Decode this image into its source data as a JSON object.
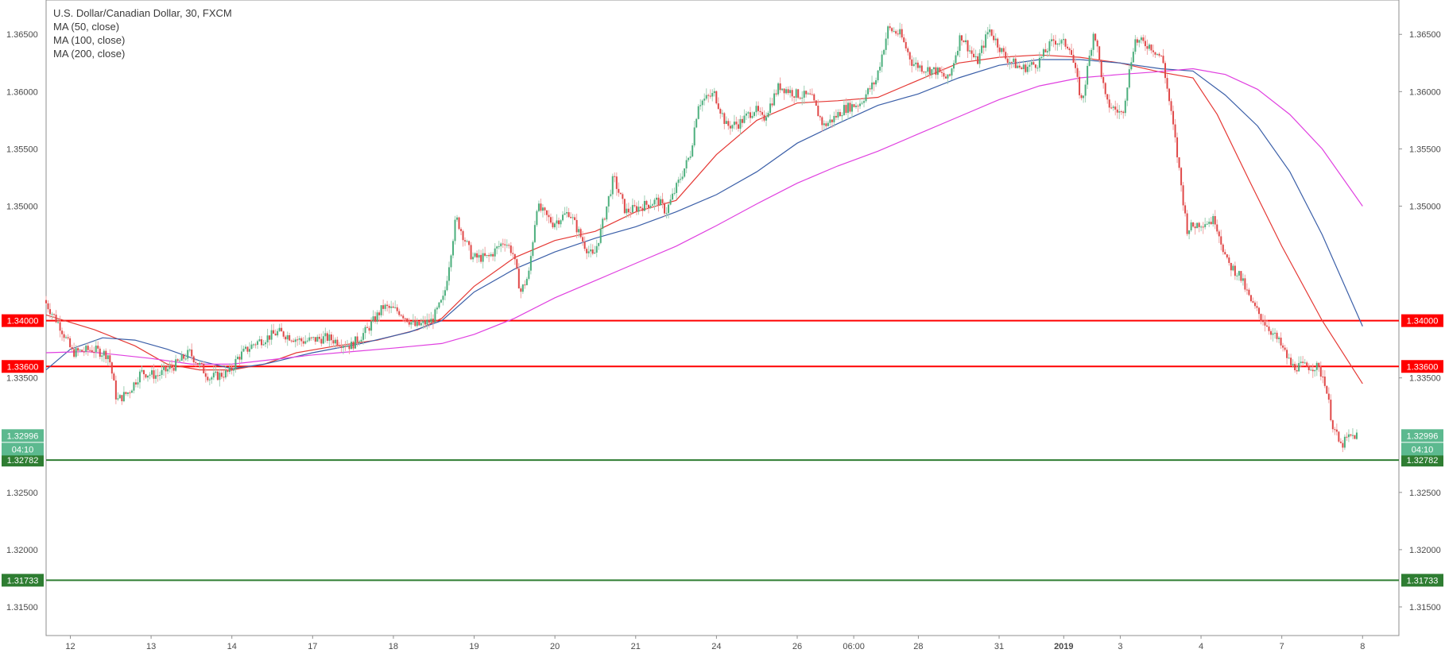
{
  "chart_data": {
    "type": "candlestick",
    "title": "U.S. Dollar/Canadian Dollar, 30, FXCM",
    "symbol": "USDCAD",
    "timeframe": "30",
    "source": "FXCM",
    "ylim": [
      1.3125,
      1.368
    ],
    "y_ticks": [
      "1.31500",
      "1.32000",
      "1.32500",
      "1.33500",
      "1.35000",
      "1.35500",
      "1.36000",
      "1.36500"
    ],
    "x_ticks": [
      {
        "label": "12",
        "x": 0
      },
      {
        "label": "13",
        "x": 1
      },
      {
        "label": "14",
        "x": 2
      },
      {
        "label": "17",
        "x": 3
      },
      {
        "label": "18",
        "x": 4
      },
      {
        "label": "19",
        "x": 5
      },
      {
        "label": "20",
        "x": 6
      },
      {
        "label": "21",
        "x": 7
      },
      {
        "label": "24",
        "x": 8
      },
      {
        "label": "26",
        "x": 9
      },
      {
        "label": "06:00",
        "x": 9.7
      },
      {
        "label": "28",
        "x": 10.5
      },
      {
        "label": "31",
        "x": 11.5
      },
      {
        "label": "2019",
        "x": 12.3,
        "bold": true
      },
      {
        "label": "3",
        "x": 13
      },
      {
        "label": "4",
        "x": 14
      },
      {
        "label": "7",
        "x": 15
      },
      {
        "label": "8",
        "x": 16
      }
    ],
    "x_range": [
      -0.3,
      16.45
    ],
    "price_path": [
      [
        -0.3,
        1.3418
      ],
      [
        -0.1,
        1.3395
      ],
      [
        0.05,
        1.3372
      ],
      [
        0.3,
        1.3375
      ],
      [
        0.5,
        1.337
      ],
      [
        0.6,
        1.333
      ],
      [
        0.75,
        1.3338
      ],
      [
        0.9,
        1.3355
      ],
      [
        1.1,
        1.3352
      ],
      [
        1.3,
        1.336
      ],
      [
        1.5,
        1.3372
      ],
      [
        1.75,
        1.335
      ],
      [
        2.0,
        1.3355
      ],
      [
        2.1,
        1.3368
      ],
      [
        2.3,
        1.338
      ],
      [
        2.6,
        1.339
      ],
      [
        2.9,
        1.3382
      ],
      [
        3.2,
        1.3385
      ],
      [
        3.5,
        1.3378
      ],
      [
        3.7,
        1.3392
      ],
      [
        3.9,
        1.3412
      ],
      [
        4.1,
        1.3408
      ],
      [
        4.3,
        1.3395
      ],
      [
        4.5,
        1.34
      ],
      [
        4.65,
        1.342
      ],
      [
        4.8,
        1.349
      ],
      [
        5.0,
        1.3455
      ],
      [
        5.2,
        1.3455
      ],
      [
        5.4,
        1.347
      ],
      [
        5.5,
        1.346
      ],
      [
        5.6,
        1.3425
      ],
      [
        5.7,
        1.344
      ],
      [
        5.8,
        1.35
      ],
      [
        6.0,
        1.3485
      ],
      [
        6.2,
        1.3495
      ],
      [
        6.4,
        1.3465
      ],
      [
        6.5,
        1.3455
      ],
      [
        6.6,
        1.348
      ],
      [
        6.75,
        1.3525
      ],
      [
        6.9,
        1.3495
      ],
      [
        7.1,
        1.35
      ],
      [
        7.3,
        1.3505
      ],
      [
        7.4,
        1.3495
      ],
      [
        7.55,
        1.352
      ],
      [
        7.7,
        1.3545
      ],
      [
        7.8,
        1.359
      ],
      [
        8.0,
        1.3598
      ],
      [
        8.15,
        1.357
      ],
      [
        8.3,
        1.3572
      ],
      [
        8.5,
        1.3585
      ],
      [
        8.6,
        1.3575
      ],
      [
        8.8,
        1.3605
      ],
      [
        9.0,
        1.3598
      ],
      [
        9.2,
        1.3595
      ],
      [
        9.35,
        1.357
      ],
      [
        9.45,
        1.3575
      ],
      [
        9.6,
        1.3585
      ],
      [
        9.8,
        1.359
      ],
      [
        10.0,
        1.361
      ],
      [
        10.15,
        1.3655
      ],
      [
        10.3,
        1.365
      ],
      [
        10.45,
        1.3625
      ],
      [
        10.6,
        1.362
      ],
      [
        10.75,
        1.3618
      ],
      [
        10.9,
        1.361
      ],
      [
        11.05,
        1.365
      ],
      [
        11.25,
        1.3625
      ],
      [
        11.4,
        1.3655
      ],
      [
        11.6,
        1.363
      ],
      [
        11.8,
        1.362
      ],
      [
        12.0,
        1.3625
      ],
      [
        12.2,
        1.3645
      ],
      [
        12.4,
        1.364
      ],
      [
        12.55,
        1.359
      ],
      [
        12.7,
        1.3655
      ],
      [
        12.85,
        1.359
      ],
      [
        13.05,
        1.358
      ],
      [
        13.2,
        1.3645
      ],
      [
        13.4,
        1.364
      ],
      [
        13.55,
        1.3628
      ],
      [
        13.7,
        1.356
      ],
      [
        13.85,
        1.348
      ],
      [
        14.0,
        1.3485
      ],
      [
        14.2,
        1.3488
      ],
      [
        14.35,
        1.345
      ],
      [
        14.5,
        1.344
      ],
      [
        14.65,
        1.3415
      ],
      [
        14.8,
        1.34
      ],
      [
        15.0,
        1.338
      ],
      [
        15.15,
        1.336
      ],
      [
        15.3,
        1.336
      ],
      [
        15.45,
        1.336
      ],
      [
        15.55,
        1.335
      ],
      [
        15.65,
        1.331
      ],
      [
        15.75,
        1.329
      ],
      [
        15.85,
        1.3298
      ],
      [
        15.95,
        1.33
      ]
    ],
    "series": [
      {
        "name": "MA (50, close)",
        "color": "#e53935",
        "points": [
          [
            -0.3,
            1.3405
          ],
          [
            0.3,
            1.3392
          ],
          [
            0.8,
            1.3378
          ],
          [
            1.2,
            1.3362
          ],
          [
            1.6,
            1.3357
          ],
          [
            2.0,
            1.3357
          ],
          [
            2.4,
            1.3362
          ],
          [
            2.8,
            1.3372
          ],
          [
            3.3,
            1.3378
          ],
          [
            3.8,
            1.3383
          ],
          [
            4.3,
            1.3392
          ],
          [
            4.6,
            1.3402
          ],
          [
            5.0,
            1.343
          ],
          [
            5.5,
            1.3455
          ],
          [
            6.0,
            1.347
          ],
          [
            6.5,
            1.3478
          ],
          [
            7.0,
            1.3495
          ],
          [
            7.5,
            1.3505
          ],
          [
            8.0,
            1.3545
          ],
          [
            8.5,
            1.3575
          ],
          [
            9.0,
            1.359
          ],
          [
            9.5,
            1.3592
          ],
          [
            10.0,
            1.3595
          ],
          [
            10.5,
            1.361
          ],
          [
            11.0,
            1.3625
          ],
          [
            11.5,
            1.363
          ],
          [
            12.0,
            1.3632
          ],
          [
            12.5,
            1.363
          ],
          [
            13.0,
            1.3625
          ],
          [
            13.5,
            1.3617
          ],
          [
            13.9,
            1.3612
          ],
          [
            14.2,
            1.358
          ],
          [
            14.6,
            1.3522
          ],
          [
            15.0,
            1.3465
          ],
          [
            15.5,
            1.34
          ],
          [
            16.0,
            1.3345
          ]
        ]
      },
      {
        "name": "MA (100, close)",
        "color": "#3b5fa8",
        "points": [
          [
            -0.3,
            1.3357
          ],
          [
            0.0,
            1.3375
          ],
          [
            0.4,
            1.3385
          ],
          [
            0.8,
            1.3383
          ],
          [
            1.2,
            1.3375
          ],
          [
            1.6,
            1.3365
          ],
          [
            2.0,
            1.3358
          ],
          [
            2.4,
            1.3362
          ],
          [
            3.0,
            1.3372
          ],
          [
            3.6,
            1.338
          ],
          [
            4.2,
            1.339
          ],
          [
            4.6,
            1.34
          ],
          [
            5.0,
            1.3425
          ],
          [
            5.5,
            1.3445
          ],
          [
            6.0,
            1.346
          ],
          [
            6.5,
            1.3472
          ],
          [
            7.0,
            1.3482
          ],
          [
            7.5,
            1.3495
          ],
          [
            8.0,
            1.351
          ],
          [
            8.5,
            1.353
          ],
          [
            9.0,
            1.3555
          ],
          [
            9.5,
            1.3572
          ],
          [
            10.0,
            1.3588
          ],
          [
            10.5,
            1.3598
          ],
          [
            11.0,
            1.3612
          ],
          [
            11.5,
            1.3623
          ],
          [
            12.0,
            1.3628
          ],
          [
            12.5,
            1.3628
          ],
          [
            13.0,
            1.3625
          ],
          [
            13.5,
            1.362
          ],
          [
            13.9,
            1.3618
          ],
          [
            14.3,
            1.3597
          ],
          [
            14.7,
            1.357
          ],
          [
            15.1,
            1.353
          ],
          [
            15.5,
            1.3475
          ],
          [
            16.0,
            1.3395
          ]
        ]
      },
      {
        "name": "MA (200, close)",
        "color": "#e040e0",
        "points": [
          [
            -0.3,
            1.3372
          ],
          [
            0.2,
            1.3373
          ],
          [
            0.6,
            1.337
          ],
          [
            1.0,
            1.3367
          ],
          [
            1.5,
            1.3362
          ],
          [
            2.0,
            1.3362
          ],
          [
            2.5,
            1.3366
          ],
          [
            3.0,
            1.337
          ],
          [
            3.5,
            1.3373
          ],
          [
            4.0,
            1.3376
          ],
          [
            4.6,
            1.338
          ],
          [
            5.0,
            1.3388
          ],
          [
            5.5,
            1.3402
          ],
          [
            6.0,
            1.342
          ],
          [
            6.5,
            1.3435
          ],
          [
            7.0,
            1.345
          ],
          [
            7.5,
            1.3465
          ],
          [
            8.0,
            1.3483
          ],
          [
            8.5,
            1.3502
          ],
          [
            9.0,
            1.352
          ],
          [
            9.5,
            1.3535
          ],
          [
            10.0,
            1.3548
          ],
          [
            10.5,
            1.3563
          ],
          [
            11.0,
            1.3578
          ],
          [
            11.5,
            1.3593
          ],
          [
            12.0,
            1.3605
          ],
          [
            12.5,
            1.3612
          ],
          [
            13.0,
            1.3615
          ],
          [
            13.4,
            1.3617
          ],
          [
            13.9,
            1.362
          ],
          [
            14.3,
            1.3615
          ],
          [
            14.7,
            1.3602
          ],
          [
            15.1,
            1.358
          ],
          [
            15.5,
            1.355
          ],
          [
            16.0,
            1.35
          ]
        ]
      }
    ],
    "levels": [
      {
        "value": 1.34,
        "label": "1.34000",
        "color": "#ff0000",
        "label_bg": "#ff0000"
      },
      {
        "value": 1.336,
        "label": "1.33600",
        "color": "#ff0000",
        "label_bg": "#ff0000"
      },
      {
        "value": 1.32782,
        "label": "1.32782",
        "color": "#2e7d32",
        "label_bg": "#2e7d32"
      },
      {
        "value": 1.31733,
        "label": "1.31733",
        "color": "#2e7d32",
        "label_bg": "#2e7d32"
      }
    ],
    "last_price": {
      "value": 1.32996,
      "label": "1.32996",
      "timer": "04:10",
      "color": "#5cb98f"
    },
    "up_color": "#4caf7d",
    "down_color": "#e04848",
    "grid": false,
    "legend_position": "top-left"
  }
}
